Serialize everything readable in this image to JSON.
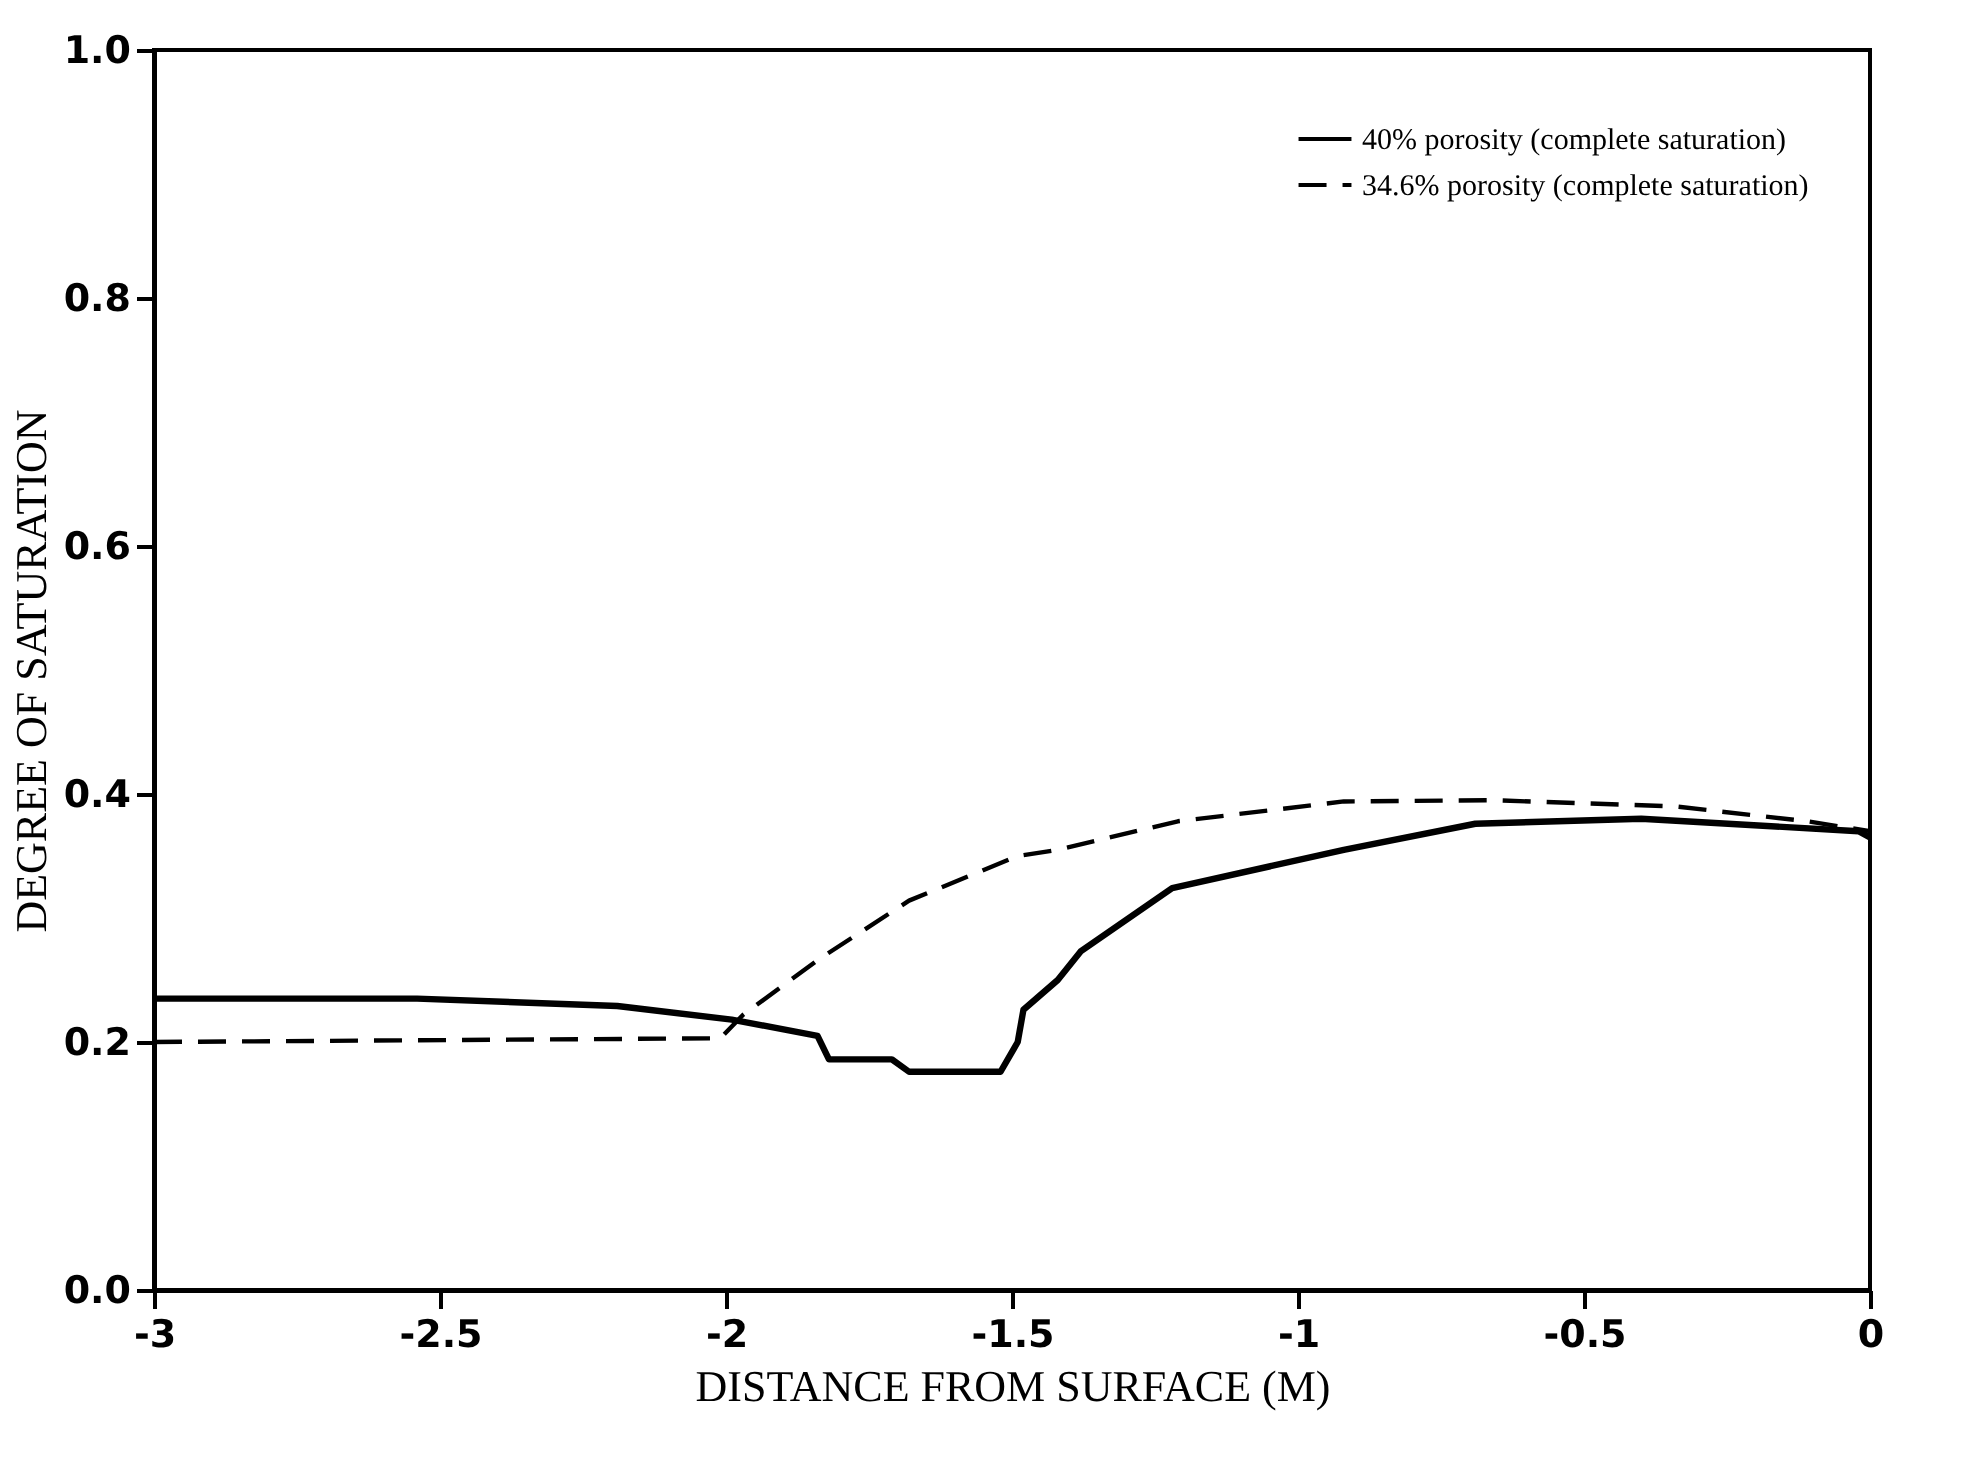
{
  "chart_data": {
    "type": "line",
    "xlabel": "DISTANCE FROM SURFACE (M)",
    "ylabel": "DEGREE OF SATURATION",
    "xlim": [
      -3,
      0
    ],
    "xticks": [
      -3,
      -2.5,
      -2,
      -1.5,
      -1,
      -0.5,
      0
    ],
    "ylim": [
      0,
      1
    ],
    "yticks": [
      {
        "value": 0,
        "label": "0.0"
      },
      0.2,
      0.4,
      0.6,
      0.8,
      {
        "value": 1,
        "label": "1.0"
      }
    ],
    "grid": false,
    "legend": "top right",
    "marker": "none",
    "series": [
      {
        "name": "40% porosity (complete saturation)",
        "color": "#000000",
        "line_style": "solid",
        "x": [
          -3,
          -2.54,
          -2.19,
          -1.99,
          -1.84,
          -1.82,
          -1.71,
          -1.68,
          -1.52,
          -1.49,
          -1.48,
          -1.42,
          -1.38,
          -1.22,
          -0.92,
          -0.69,
          -0.4,
          -0.02,
          0
        ],
        "values": [
          0.235,
          0.235,
          0.229,
          0.218,
          0.205,
          0.186,
          0.186,
          0.176,
          0.176,
          0.2,
          0.226,
          0.25,
          0.273,
          0.324,
          0.355,
          0.376,
          0.38,
          0.37,
          0.365
        ]
      },
      {
        "name": "34.6% porosity (complete saturation)",
        "color": "#000000",
        "line_style": "dashed",
        "x": [
          -3,
          -2.01,
          -1.97,
          -1.84,
          -1.68,
          -1.49,
          -1.42,
          -1.21,
          -0.92,
          -0.66,
          -0.34,
          -0.11,
          0
        ],
        "values": [
          0.2,
          0.203,
          0.222,
          0.266,
          0.314,
          0.35,
          0.355,
          0.378,
          0.394,
          0.395,
          0.39,
          0.378,
          0.37
        ]
      }
    ]
  }
}
